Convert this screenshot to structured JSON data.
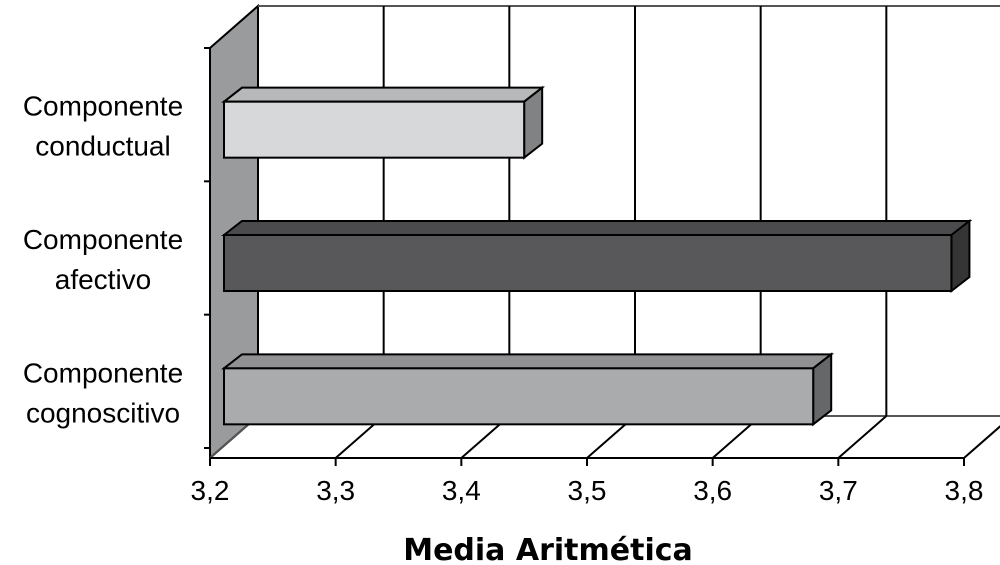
{
  "chart_data": {
    "type": "bar",
    "orientation": "horizontal",
    "style": "3d",
    "categories": [
      [
        "Componente",
        "conductual"
      ],
      [
        "Componente",
        "afectivo"
      ],
      [
        "Componente",
        "cognoscitivo"
      ]
    ],
    "values": [
      3.45,
      3.79,
      3.68
    ],
    "colors": [
      "#d7d8da",
      "#58585a",
      "#aaabad"
    ],
    "xlim": [
      3.2,
      3.8
    ],
    "xticks": [
      "3,2",
      "3,3",
      "3,4",
      "3,5",
      "3,6",
      "3,7",
      "3,8"
    ],
    "xlabel": "Media Aritmética",
    "title": "",
    "grid": true,
    "legend": "none"
  }
}
